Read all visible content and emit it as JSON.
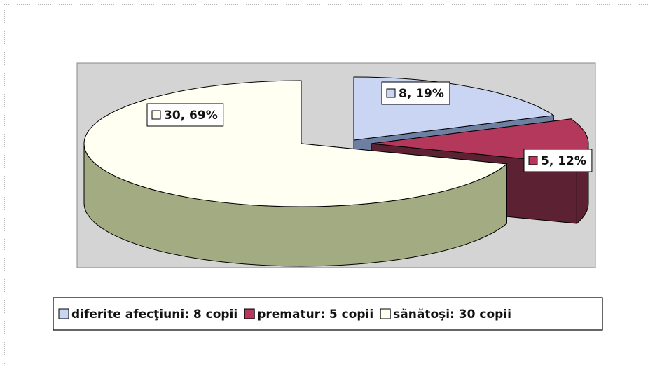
{
  "chart_data": {
    "type": "pie",
    "categories": [
      "diferite afecţiuni: 8 copii",
      "prematur: 5 copii",
      "sănătoşi: 30 copii"
    ],
    "values": [
      8,
      5,
      30
    ],
    "value_labels": [
      "8, 19%",
      "5, 12%",
      "30, 69%"
    ],
    "colors": [
      "#c9d5f2",
      "#b3385c",
      "#fffff2"
    ],
    "legend": "bottom"
  }
}
